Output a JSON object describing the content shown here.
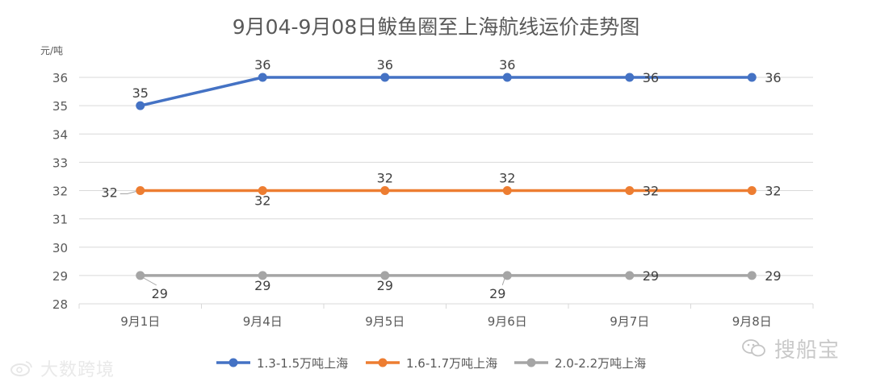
{
  "chart_data": {
    "type": "line",
    "title": "9月04-9月08日鲅鱼圈至上海航线运价走势图",
    "ylabel": "元/吨",
    "xlabel": "",
    "ylim": [
      28,
      36
    ],
    "yticks": [
      28,
      29,
      30,
      31,
      32,
      33,
      34,
      35,
      36
    ],
    "grid": true,
    "legend_position": "bottom",
    "categories": [
      "9月1日",
      "9月4日",
      "9月5日",
      "9月6日",
      "9月7日",
      "9月8日"
    ],
    "series": [
      {
        "name": "1.3-1.5万吨上海",
        "color": "#4472c4",
        "values": [
          35,
          36,
          36,
          36,
          36,
          36
        ]
      },
      {
        "name": "1.6-1.7万吨上海",
        "color": "#ed7d31",
        "values": [
          32,
          32,
          32,
          32,
          32,
          32
        ]
      },
      {
        "name": "2.0-2.2万吨上海",
        "color": "#a5a5a5",
        "values": [
          29,
          29,
          29,
          29,
          29,
          29
        ]
      }
    ]
  },
  "watermarks": {
    "left": "大数跨境",
    "right": "搜船宝"
  }
}
